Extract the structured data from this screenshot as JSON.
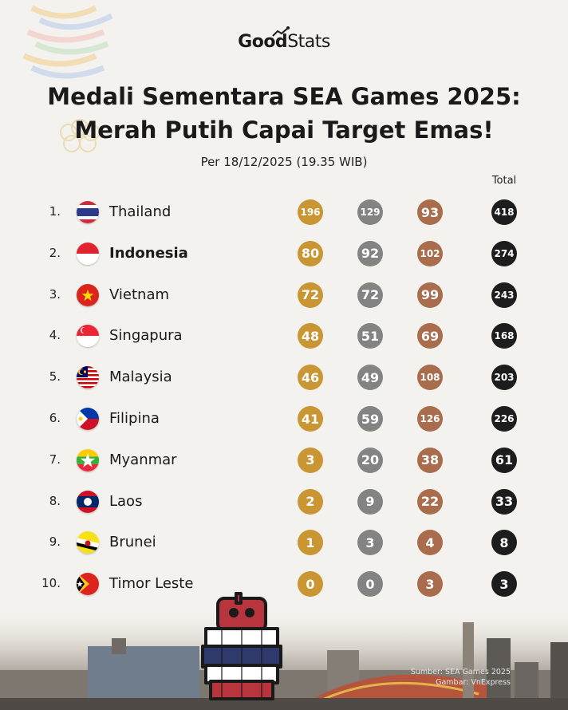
{
  "brand": {
    "good": "Good",
    "stats": "Stats"
  },
  "title_line1": "Medali Sementara SEA Games 2025:",
  "title_line2": "Merah Putih Capai Target Emas!",
  "subtitle": "Per 18/12/2025 (19.35 WIB)",
  "total_header": "Total",
  "colors": {
    "gold": "#c99633",
    "silver": "#838383",
    "bronze": "#a96d4e",
    "total": "#1d1d1d"
  },
  "standings": [
    {
      "rank": "1.",
      "country": "Thailand",
      "flag": "thailand-flag-icon",
      "gold": "196",
      "silver": "129",
      "bronze": "93",
      "total": "418"
    },
    {
      "rank": "2.",
      "country": "Indonesia",
      "flag": "indonesia-flag-icon",
      "gold": "80",
      "silver": "92",
      "bronze": "102",
      "total": "274"
    },
    {
      "rank": "3.",
      "country": "Vietnam",
      "flag": "vietnam-flag-icon",
      "gold": "72",
      "silver": "72",
      "bronze": "99",
      "total": "243"
    },
    {
      "rank": "4.",
      "country": "Singapura",
      "flag": "singapore-flag-icon",
      "gold": "48",
      "silver": "51",
      "bronze": "69",
      "total": "168"
    },
    {
      "rank": "5.",
      "country": "Malaysia",
      "flag": "malaysia-flag-icon",
      "gold": "46",
      "silver": "49",
      "bronze": "108",
      "total": "203"
    },
    {
      "rank": "6.",
      "country": "Filipina",
      "flag": "philippines-flag-icon",
      "gold": "41",
      "silver": "59",
      "bronze": "126",
      "total": "226"
    },
    {
      "rank": "7.",
      "country": "Myanmar",
      "flag": "myanmar-flag-icon",
      "gold": "3",
      "silver": "20",
      "bronze": "38",
      "total": "61"
    },
    {
      "rank": "8.",
      "country": "Laos",
      "flag": "laos-flag-icon",
      "gold": "2",
      "silver": "9",
      "bronze": "22",
      "total": "33"
    },
    {
      "rank": "9.",
      "country": "Brunei",
      "flag": "brunei-flag-icon",
      "gold": "1",
      "silver": "3",
      "bronze": "4",
      "total": "8"
    },
    {
      "rank": "10.",
      "country": "Timor Leste",
      "flag": "timor-leste-flag-icon",
      "gold": "0",
      "silver": "0",
      "bronze": "3",
      "total": "3"
    }
  ],
  "source_line1": "Sumber: SEA Games 2025",
  "source_line2": "Gambar: VnExpress"
}
